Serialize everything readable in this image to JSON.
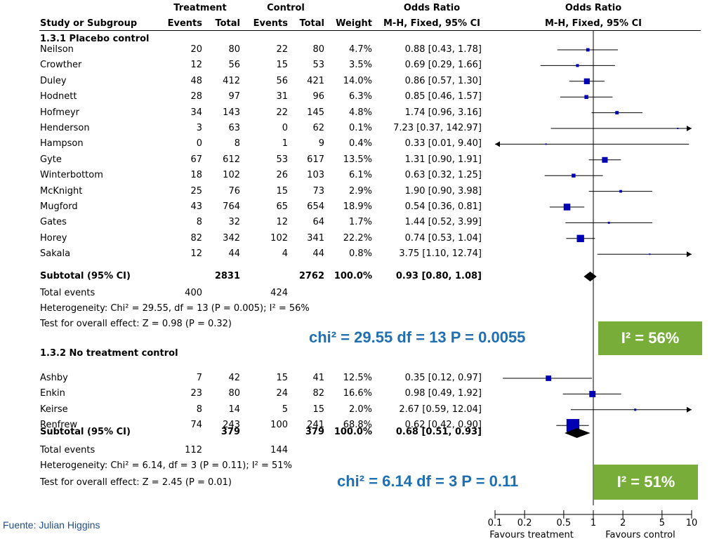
{
  "header": {
    "treatment": "Treatment",
    "control": "Control",
    "odds_ratio_col": "Odds Ratio",
    "odds_ratio_plot": "Odds Ratio",
    "study": "Study or Subgroup",
    "events_t": "Events",
    "total_t": "Total",
    "events_c": "Events",
    "total_c": "Total",
    "weight": "Weight",
    "method_col": "M-H, Fixed, 95% CI",
    "method_plot": "M-H, Fixed, 95% CI"
  },
  "group1": {
    "title": "1.3.1 Placebo control",
    "subtotal": {
      "label": "Subtotal (95% CI)",
      "total_t": "2831",
      "total_c": "2762",
      "weight": "100.0%",
      "ci": "0.93 [0.80, 1.08]"
    },
    "total_events": {
      "label": "Total events",
      "t": "400",
      "c": "424"
    },
    "heterogeneity": "Heterogeneity: Chi² = 29.55, df = 13 (P = 0.005); I² = 56%",
    "overall": "Test for overall effect: Z = 0.98 (P = 0.32)"
  },
  "group2": {
    "title": "1.3.2 No treatment control",
    "subtotal": {
      "label": "Subtotal (95% CI)",
      "total_t": "379",
      "total_c": "379",
      "weight": "100.0%",
      "ci": "0.68 [0.51, 0.93]"
    },
    "total_events": {
      "label": "Total events",
      "t": "112",
      "c": "144"
    },
    "heterogeneity": "Heterogeneity: Chi² = 6.14, df = 3 (P = 0.11); I² = 51%",
    "overall": "Test for overall effect: Z = 2.45 (P = 0.01)"
  },
  "annotations": {
    "chi1": "chi² = 29.55  df = 13  P = 0.0055",
    "i2_1": "I² = 56%",
    "chi2": "chi² = 6.14  df = 3  P = 0.11",
    "i2_2": "I² = 51%"
  },
  "axis": {
    "ticks": [
      "0.1",
      "0.2",
      "0.5",
      "1",
      "2",
      "5",
      "10"
    ],
    "favours_left": "Favours treatment",
    "favours_right": "Favours control"
  },
  "source": "Fuente: Julian Higgins",
  "colors": {
    "marker": "#0000b4",
    "annotation_text": "#1f6fb2",
    "annotation_box": "#78ad3a"
  },
  "chart_data": {
    "type": "forest",
    "scale": "log",
    "xlim": [
      0.1,
      10
    ],
    "null_value": 1,
    "groups": [
      {
        "name": "1.3.1 Placebo control",
        "studies": [
          {
            "study": "Neilson",
            "events_t": "20",
            "total_t": "80",
            "events_c": "22",
            "total_c": "80",
            "weight": "4.7%",
            "ci_text": "0.88 [0.43, 1.78]",
            "or": 0.88,
            "lo": 0.43,
            "hi": 1.78,
            "w": 4.7
          },
          {
            "study": "Crowther",
            "events_t": "12",
            "total_t": "56",
            "events_c": "15",
            "total_c": "53",
            "weight": "3.5%",
            "ci_text": "0.69 [0.29, 1.66]",
            "or": 0.69,
            "lo": 0.29,
            "hi": 1.66,
            "w": 3.5
          },
          {
            "study": "Duley",
            "events_t": "48",
            "total_t": "412",
            "events_c": "56",
            "total_c": "421",
            "weight": "14.0%",
            "ci_text": "0.86 [0.57, 1.30]",
            "or": 0.86,
            "lo": 0.57,
            "hi": 1.3,
            "w": 14.0
          },
          {
            "study": "Hodnett",
            "events_t": "28",
            "total_t": "97",
            "events_c": "31",
            "total_c": "96",
            "weight": "6.3%",
            "ci_text": "0.85 [0.46, 1.57]",
            "or": 0.85,
            "lo": 0.46,
            "hi": 1.57,
            "w": 6.3
          },
          {
            "study": "Hofmeyr",
            "events_t": "34",
            "total_t": "143",
            "events_c": "22",
            "total_c": "145",
            "weight": "4.8%",
            "ci_text": "1.74 [0.96, 3.16]",
            "or": 1.74,
            "lo": 0.96,
            "hi": 3.16,
            "w": 4.8
          },
          {
            "study": "Henderson",
            "events_t": "3",
            "total_t": "63",
            "events_c": "0",
            "total_c": "62",
            "weight": "0.1%",
            "ci_text": "7.23 [0.37, 142.97]",
            "or": 7.23,
            "lo": 0.37,
            "hi": 142.97,
            "w": 0.1
          },
          {
            "study": "Hampson",
            "events_t": "0",
            "total_t": "8",
            "events_c": "1",
            "total_c": "9",
            "weight": "0.4%",
            "ci_text": "0.33 [0.01, 9.40]",
            "or": 0.33,
            "lo": 0.01,
            "hi": 9.4,
            "w": 0.4
          },
          {
            "study": "Gyte",
            "events_t": "67",
            "total_t": "612",
            "events_c": "53",
            "total_c": "617",
            "weight": "13.5%",
            "ci_text": "1.31 [0.90, 1.91]",
            "or": 1.31,
            "lo": 0.9,
            "hi": 1.91,
            "w": 13.5
          },
          {
            "study": "Winterbottom",
            "events_t": "18",
            "total_t": "102",
            "events_c": "26",
            "total_c": "103",
            "weight": "6.1%",
            "ci_text": "0.63 [0.32, 1.25]",
            "or": 0.63,
            "lo": 0.32,
            "hi": 1.25,
            "w": 6.1
          },
          {
            "study": "McKnight",
            "events_t": "25",
            "total_t": "76",
            "events_c": "15",
            "total_c": "73",
            "weight": "2.9%",
            "ci_text": "1.90 [0.90, 3.98]",
            "or": 1.9,
            "lo": 0.9,
            "hi": 3.98,
            "w": 2.9
          },
          {
            "study": "Mugford",
            "events_t": "43",
            "total_t": "764",
            "events_c": "65",
            "total_c": "654",
            "weight": "18.9%",
            "ci_text": "0.54 [0.36, 0.81]",
            "or": 0.54,
            "lo": 0.36,
            "hi": 0.81,
            "w": 18.9
          },
          {
            "study": "Gates",
            "events_t": "8",
            "total_t": "32",
            "events_c": "12",
            "total_c": "64",
            "weight": "1.7%",
            "ci_text": "1.44 [0.52, 3.99]",
            "or": 1.44,
            "lo": 0.52,
            "hi": 3.99,
            "w": 1.7
          },
          {
            "study": "Horey",
            "events_t": "82",
            "total_t": "342",
            "events_c": "102",
            "total_c": "341",
            "weight": "22.2%",
            "ci_text": "0.74 [0.53, 1.04]",
            "or": 0.74,
            "lo": 0.53,
            "hi": 1.04,
            "w": 22.2
          },
          {
            "study": "Sakala",
            "events_t": "12",
            "total_t": "44",
            "events_c": "4",
            "total_c": "44",
            "weight": "0.8%",
            "ci_text": "3.75 [1.10, 12.74]",
            "or": 3.75,
            "lo": 1.1,
            "hi": 12.74,
            "w": 0.8
          }
        ],
        "subtotal": {
          "or": 0.93,
          "lo": 0.8,
          "hi": 1.08
        }
      },
      {
        "name": "1.3.2 No treatment control",
        "studies": [
          {
            "study": "Ashby",
            "events_t": "7",
            "total_t": "42",
            "events_c": "15",
            "total_c": "41",
            "weight": "12.5%",
            "ci_text": "0.35 [0.12, 0.97]",
            "or": 0.35,
            "lo": 0.12,
            "hi": 0.97,
            "w": 12.5
          },
          {
            "study": "Enkin",
            "events_t": "23",
            "total_t": "80",
            "events_c": "24",
            "total_c": "82",
            "weight": "16.6%",
            "ci_text": "0.98 [0.49, 1.92]",
            "or": 0.98,
            "lo": 0.49,
            "hi": 1.92,
            "w": 16.6
          },
          {
            "study": "Keirse",
            "events_t": "8",
            "total_t": "14",
            "events_c": "5",
            "total_c": "15",
            "weight": "2.0%",
            "ci_text": "2.67 [0.59, 12.04]",
            "or": 2.67,
            "lo": 0.59,
            "hi": 12.04,
            "w": 2.0
          },
          {
            "study": "Renfrew",
            "events_t": "74",
            "total_t": "243",
            "events_c": "100",
            "total_c": "241",
            "weight": "68.8%",
            "ci_text": "0.62 [0.42, 0.90]",
            "or": 0.62,
            "lo": 0.42,
            "hi": 0.9,
            "w": 68.8
          }
        ],
        "subtotal": {
          "or": 0.68,
          "lo": 0.51,
          "hi": 0.93
        }
      }
    ]
  }
}
